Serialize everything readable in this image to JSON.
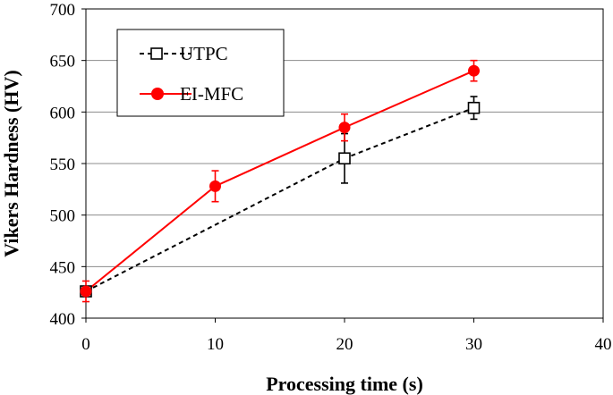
{
  "chart_data": {
    "type": "line",
    "xlabel": "Processing time (s)",
    "ylabel": "Vikers Hardness (HV)",
    "xlim": [
      0,
      40
    ],
    "ylim": [
      400,
      700
    ],
    "xticks": [
      0,
      10,
      20,
      30,
      40
    ],
    "yticks": [
      400,
      450,
      500,
      550,
      600,
      650,
      700
    ],
    "grid": "horizontal",
    "legend_position": "top-left",
    "series": [
      {
        "name": "UTPC",
        "color": "#000000",
        "line_style": "dashed",
        "marker": "open-square",
        "points": [
          {
            "x": 0,
            "y": 426,
            "err": 0
          },
          {
            "x": 20,
            "y": 555,
            "err": 24
          },
          {
            "x": 30,
            "y": 604,
            "err": 11
          }
        ]
      },
      {
        "name": "EI-MFC",
        "color": "#ff0000",
        "line_style": "solid",
        "marker": "filled-circle",
        "points": [
          {
            "x": 0,
            "y": 426,
            "err": 10
          },
          {
            "x": 10,
            "y": 528,
            "err": 15
          },
          {
            "x": 20,
            "y": 585,
            "err": 13
          },
          {
            "x": 30,
            "y": 640,
            "err": 10
          }
        ]
      }
    ]
  }
}
